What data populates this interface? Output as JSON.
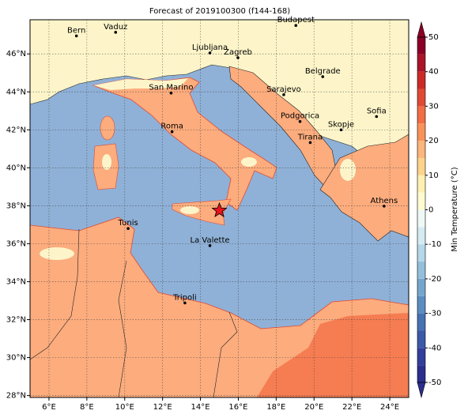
{
  "title": "Forecast of 2019100300 (f144-168)",
  "map": {
    "lonlim": [
      5,
      25
    ],
    "latlim": [
      27.9,
      47.8
    ],
    "lon_ticks": [
      {
        "value": 6,
        "label": "6°E"
      },
      {
        "value": 8,
        "label": "8°E"
      },
      {
        "value": 10,
        "label": "10°E"
      },
      {
        "value": 12,
        "label": "12°E"
      },
      {
        "value": 14,
        "label": "14°E"
      },
      {
        "value": 16,
        "label": "16°E"
      },
      {
        "value": 18,
        "label": "18°E"
      },
      {
        "value": 20,
        "label": "20°E"
      },
      {
        "value": 22,
        "label": "22°E"
      },
      {
        "value": 24,
        "label": "24°E"
      }
    ],
    "lat_ticks": [
      {
        "value": 28,
        "label": "28°N"
      },
      {
        "value": 30,
        "label": "30°N"
      },
      {
        "value": 32,
        "label": "32°N"
      },
      {
        "value": 34,
        "label": "34°N"
      },
      {
        "value": 36,
        "label": "36°N"
      },
      {
        "value": 38,
        "label": "38°N"
      },
      {
        "value": 40,
        "label": "40°N"
      },
      {
        "value": 42,
        "label": "42°N"
      },
      {
        "value": 44,
        "label": "44°N"
      },
      {
        "value": 46,
        "label": "46°N"
      }
    ]
  },
  "cities": [
    {
      "name": "Bern",
      "lon": 7.45,
      "lat": 46.95
    },
    {
      "name": "Vaduz",
      "lon": 9.52,
      "lat": 47.14
    },
    {
      "name": "Budapest",
      "lon": 19.04,
      "lat": 47.5
    },
    {
      "name": "Ljubljana",
      "lon": 14.5,
      "lat": 46.05
    },
    {
      "name": "Zagreb",
      "lon": 15.98,
      "lat": 45.8
    },
    {
      "name": "Belgrade",
      "lon": 20.46,
      "lat": 44.8
    },
    {
      "name": "San Marino",
      "lon": 12.45,
      "lat": 43.94
    },
    {
      "name": "Sarajevo",
      "lon": 18.4,
      "lat": 43.85
    },
    {
      "name": "Sofia",
      "lon": 23.3,
      "lat": 42.7
    },
    {
      "name": "Podgorica",
      "lon": 19.26,
      "lat": 42.44
    },
    {
      "name": "Skopje",
      "lon": 21.43,
      "lat": 42.0
    },
    {
      "name": "Roma",
      "lon": 12.5,
      "lat": 41.9
    },
    {
      "name": "Tirana",
      "lon": 19.8,
      "lat": 41.33
    },
    {
      "name": "Athens",
      "lon": 23.7,
      "lat": 37.98
    },
    {
      "name": "Tunis",
      "lon": 10.18,
      "lat": 36.8
    },
    {
      "name": "La Valette",
      "lon": 14.5,
      "lat": 35.9
    },
    {
      "name": "Tripoli",
      "lon": 13.18,
      "lat": 32.88
    }
  ],
  "marker": {
    "lon": 15.0,
    "lat": 37.75
  },
  "colorbar": {
    "label": "Min Temperature (°C)",
    "lim": [
      -50,
      50
    ],
    "ticks": [
      -50,
      -40,
      -30,
      -20,
      -10,
      0,
      10,
      20,
      30,
      40,
      50
    ],
    "colors": [
      "#2b2f8e",
      "#333f9c",
      "#3a5aa7",
      "#4671b2",
      "#5a8dc1",
      "#74a6cd",
      "#94bfdc",
      "#b4d7e9",
      "#d4ebf2",
      "#eef8f5",
      "#fffbd0",
      "#fef0b0",
      "#fdd38a",
      "#fcb57a",
      "#f99258",
      "#f26d43",
      "#e04a33",
      "#cc2a27",
      "#aa1428",
      "#8a0026"
    ]
  }
}
